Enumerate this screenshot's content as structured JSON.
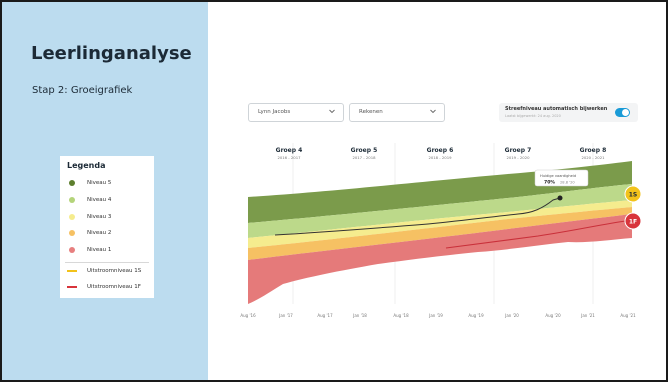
{
  "sidebar": {
    "title": "Leerlinganalyse",
    "subtitle": "Stap 2: Groeigrafiek"
  },
  "legend": {
    "title": "Legenda",
    "items": [
      {
        "label": "Niveau 5",
        "color": "#5d7f2e",
        "kind": "dot"
      },
      {
        "label": "Niveau 4",
        "color": "#b4d47a",
        "kind": "dot"
      },
      {
        "label": "Niveau 3",
        "color": "#f5ec8e",
        "kind": "dot"
      },
      {
        "label": "Niveau 2",
        "color": "#f6c163",
        "kind": "dot"
      },
      {
        "label": "Niveau 1",
        "color": "#e77f7f",
        "kind": "dot"
      },
      {
        "label": "Uitstroomniveau 1S",
        "color": "#f2c21b",
        "kind": "line"
      },
      {
        "label": "Uitstroomniveau 1F",
        "color": "#d8343b",
        "kind": "line"
      }
    ]
  },
  "controls": {
    "student_select": "Lynn Jacobs",
    "subject_select": "Rekenen",
    "toggle_title": "Streefniveau automatisch bijwerken",
    "toggle_subtitle": "Laatst bijgewerkt: 24 aug. 2020",
    "toggle_on": true
  },
  "chart_data": {
    "type": "area",
    "groups": [
      {
        "name": "Groep 4",
        "years": "2016 - 2017"
      },
      {
        "name": "Groep 5",
        "years": "2017 - 2018"
      },
      {
        "name": "Groep 6",
        "years": "2018 - 2019"
      },
      {
        "name": "Groep 7",
        "years": "2019 - 2020"
      },
      {
        "name": "Groep 8",
        "years": "2020 - 2021"
      }
    ],
    "x_ticks": [
      "Aug '16",
      "Jan '17",
      "Aug '17",
      "Jan '18",
      "Aug '18",
      "Jan '19",
      "Aug '19",
      "Jan '20",
      "Aug '20",
      "Jan '21",
      "Aug '21"
    ],
    "tooltip": {
      "label": "Huidige vaardigheid",
      "value": "70%",
      "date": "28.8 '20"
    },
    "badges": [
      {
        "label": "1S",
        "color": "#f2c21b",
        "text_color": "#1c2a36"
      },
      {
        "label": "1F",
        "color": "#d8343b",
        "text_color": "#ffffff"
      }
    ],
    "colors": {
      "niveau5": "#7b9b4b",
      "niveau4": "#bcd98a",
      "niveau3": "#f5ec8e",
      "niveau2": "#f6c163",
      "niveau1": "#e57a7a",
      "student_line": "#333333",
      "line_1f": "#c9303a"
    }
  }
}
